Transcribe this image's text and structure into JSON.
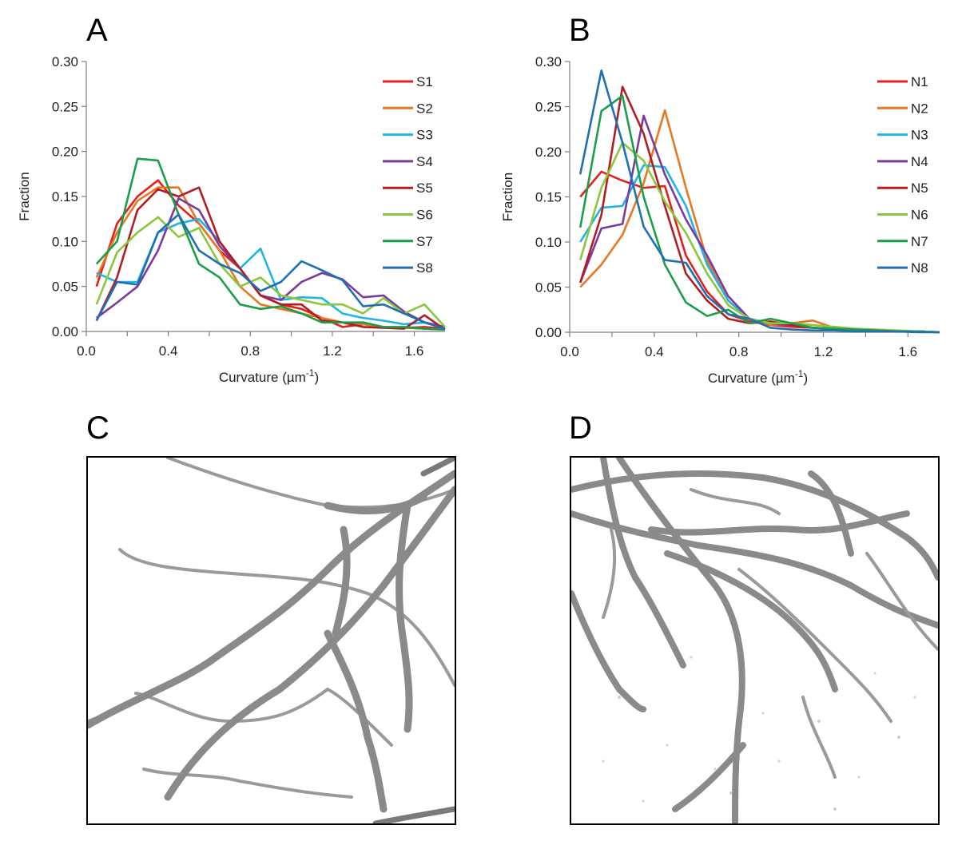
{
  "panels": {
    "a": {
      "letter": "A"
    },
    "b": {
      "letter": "B"
    },
    "c": {
      "letter": "C"
    },
    "d": {
      "letter": "D"
    }
  },
  "chart_data": [
    {
      "type": "line",
      "panel": "A",
      "title": "",
      "xlabel": "Curvature (µm",
      "xlabel_sup": "-1",
      "xlabel_close": ")",
      "ylabel": "Fraction",
      "xlim": [
        0.0,
        1.75
      ],
      "ylim": [
        0.0,
        0.3
      ],
      "xticks": [
        "0.0",
        "0.4",
        "0.8",
        "1.2",
        "1.6"
      ],
      "yticks": [
        "0.00",
        "0.05",
        "0.10",
        "0.15",
        "0.20",
        "0.25",
        "0.30"
      ],
      "grid": false,
      "legend": "top-right",
      "x": [
        0.05,
        0.15,
        0.25,
        0.35,
        0.45,
        0.55,
        0.65,
        0.75,
        0.85,
        0.95,
        1.05,
        1.15,
        1.25,
        1.35,
        1.45,
        1.55,
        1.65,
        1.75
      ],
      "series": [
        {
          "name": "S1",
          "color": "#e3201b",
          "values": [
            0.05,
            0.12,
            0.15,
            0.168,
            0.14,
            0.12,
            0.09,
            0.07,
            0.04,
            0.03,
            0.025,
            0.015,
            0.005,
            0.008,
            0.005,
            0.004,
            0.005,
            0.003
          ]
        },
        {
          "name": "S2",
          "color": "#e87722",
          "values": [
            0.06,
            0.11,
            0.145,
            0.16,
            0.16,
            0.12,
            0.09,
            0.05,
            0.03,
            0.025,
            0.02,
            0.015,
            0.01,
            0.008,
            0.005,
            0.004,
            0.003,
            0.002
          ]
        },
        {
          "name": "S3",
          "color": "#1fb4e6",
          "values": [
            0.065,
            0.055,
            0.055,
            0.11,
            0.12,
            0.125,
            0.1,
            0.07,
            0.092,
            0.035,
            0.038,
            0.037,
            0.02,
            0.015,
            0.012,
            0.008,
            0.01,
            0.005
          ]
        },
        {
          "name": "S4",
          "color": "#7a3a9e",
          "values": [
            0.015,
            0.032,
            0.05,
            0.09,
            0.148,
            0.135,
            0.095,
            0.07,
            0.04,
            0.035,
            0.055,
            0.065,
            0.058,
            0.038,
            0.04,
            0.022,
            0.01,
            0.005
          ]
        },
        {
          "name": "S5",
          "color": "#b01e23",
          "values": [
            0.012,
            0.06,
            0.135,
            0.158,
            0.15,
            0.16,
            0.1,
            0.07,
            0.04,
            0.03,
            0.03,
            0.012,
            0.01,
            0.005,
            0.004,
            0.003,
            0.018,
            0.002
          ]
        },
        {
          "name": "S6",
          "color": "#8cc63f",
          "values": [
            0.03,
            0.088,
            0.11,
            0.127,
            0.105,
            0.115,
            0.075,
            0.05,
            0.06,
            0.04,
            0.035,
            0.03,
            0.03,
            0.02,
            0.037,
            0.02,
            0.03,
            0.005
          ]
        },
        {
          "name": "S7",
          "color": "#1a9e4b",
          "values": [
            0.075,
            0.1,
            0.192,
            0.19,
            0.13,
            0.075,
            0.06,
            0.03,
            0.025,
            0.028,
            0.02,
            0.01,
            0.01,
            0.01,
            0.005,
            0.005,
            0.003,
            0.002
          ]
        },
        {
          "name": "S8",
          "color": "#1f6fb4",
          "values": [
            0.012,
            0.055,
            0.052,
            0.11,
            0.13,
            0.09,
            0.075,
            0.065,
            0.045,
            0.055,
            0.078,
            0.068,
            0.057,
            0.028,
            0.03,
            0.02,
            0.01,
            0.003
          ]
        }
      ]
    },
    {
      "type": "line",
      "panel": "B",
      "title": "",
      "xlabel": "Curvature (µm",
      "xlabel_sup": "-1",
      "xlabel_close": ")",
      "ylabel": "Fraction",
      "xlim": [
        0.0,
        1.75
      ],
      "ylim": [
        0.0,
        0.3
      ],
      "xticks": [
        "0.0",
        "0.4",
        "0.8",
        "1.2",
        "1.6"
      ],
      "yticks": [
        "0.00",
        "0.05",
        "0.10",
        "0.15",
        "0.20",
        "0.25",
        "0.30"
      ],
      "grid": false,
      "legend": "top-right",
      "x": [
        0.05,
        0.15,
        0.25,
        0.35,
        0.45,
        0.55,
        0.65,
        0.75,
        0.85,
        0.95,
        1.05,
        1.15,
        1.25,
        1.35,
        1.45,
        1.55,
        1.65,
        1.75
      ],
      "series": [
        {
          "name": "N1",
          "color": "#e3201b",
          "values": [
            0.15,
            0.178,
            0.168,
            0.16,
            0.162,
            0.085,
            0.045,
            0.02,
            0.012,
            0.008,
            0.006,
            0.005,
            0.004,
            0.003,
            0.002,
            0.001,
            0.001,
            0.0
          ]
        },
        {
          "name": "N2",
          "color": "#e87722",
          "values": [
            0.05,
            0.075,
            0.108,
            0.165,
            0.246,
            0.16,
            0.08,
            0.035,
            0.015,
            0.008,
            0.01,
            0.013,
            0.005,
            0.003,
            0.002,
            0.001,
            0.001,
            0.0
          ]
        },
        {
          "name": "N3",
          "color": "#1fb4e6",
          "values": [
            0.1,
            0.138,
            0.14,
            0.185,
            0.183,
            0.14,
            0.075,
            0.035,
            0.015,
            0.01,
            0.008,
            0.005,
            0.004,
            0.003,
            0.002,
            0.001,
            0.001,
            0.0
          ]
        },
        {
          "name": "N4",
          "color": "#7a3a9e",
          "values": [
            0.055,
            0.115,
            0.12,
            0.24,
            0.175,
            0.125,
            0.085,
            0.04,
            0.015,
            0.01,
            0.008,
            0.005,
            0.004,
            0.003,
            0.002,
            0.001,
            0.001,
            0.0
          ]
        },
        {
          "name": "N5",
          "color": "#b01e23",
          "values": [
            0.055,
            0.13,
            0.272,
            0.22,
            0.14,
            0.065,
            0.035,
            0.015,
            0.01,
            0.012,
            0.008,
            0.005,
            0.004,
            0.003,
            0.002,
            0.001,
            0.001,
            0.0
          ]
        },
        {
          "name": "N6",
          "color": "#8cc63f",
          "values": [
            0.08,
            0.16,
            0.21,
            0.19,
            0.145,
            0.11,
            0.065,
            0.03,
            0.015,
            0.01,
            0.01,
            0.008,
            0.006,
            0.004,
            0.003,
            0.002,
            0.001,
            0.0
          ]
        },
        {
          "name": "N7",
          "color": "#1a9e4b",
          "values": [
            0.116,
            0.245,
            0.262,
            0.15,
            0.075,
            0.033,
            0.018,
            0.025,
            0.01,
            0.015,
            0.01,
            0.005,
            0.004,
            0.003,
            0.002,
            0.001,
            0.001,
            0.0
          ]
        },
        {
          "name": "N8",
          "color": "#1f6fb4",
          "values": [
            0.175,
            0.29,
            0.21,
            0.117,
            0.08,
            0.077,
            0.04,
            0.02,
            0.015,
            0.005,
            0.003,
            0.002,
            0.002,
            0.001,
            0.001,
            0.001,
            0.0,
            0.0
          ]
        }
      ]
    }
  ],
  "images": [
    {
      "panel": "C",
      "content": "grayscale-fibers-sparse"
    },
    {
      "panel": "D",
      "content": "grayscale-fibers-dense"
    }
  ]
}
